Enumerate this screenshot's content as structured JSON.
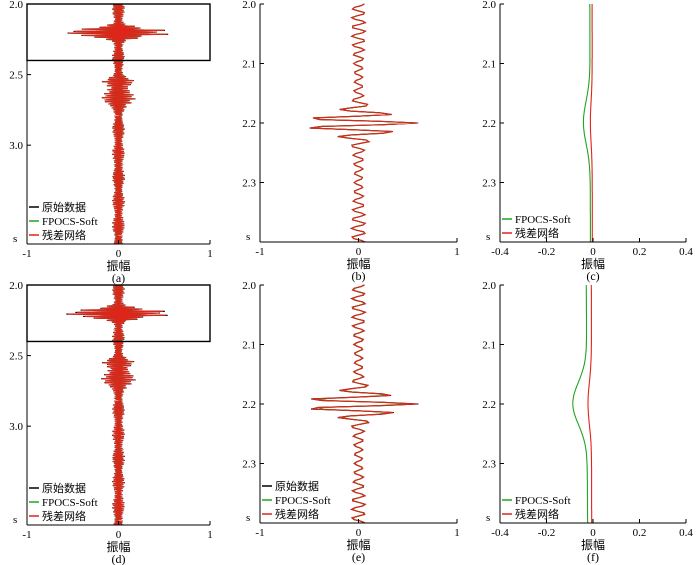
{
  "colors": {
    "original": "#000000",
    "fpocs": "#1fa51f",
    "residual": "#e2231a"
  },
  "legend_labels": {
    "original": "原始数据",
    "fpocs": "FPOCS-Soft",
    "residual": "残差网络"
  },
  "x_axis_label": "振幅",
  "y_unit_label": "s",
  "chart_data": [
    {
      "type": "line",
      "caption": "(a)",
      "orientation": "vertical-trace",
      "xlim": [
        -1,
        1
      ],
      "xticks": [
        "-1",
        "0",
        "1"
      ],
      "ylim": [
        2.0,
        3.7
      ],
      "yticks": [
        {
          "v": 2.0,
          "t": "2.0"
        },
        {
          "v": 2.5,
          "t": "2.5"
        },
        {
          "v": 3.0,
          "t": "3.0"
        }
      ],
      "zoom_box": {
        "x": [
          -1,
          1
        ],
        "y": [
          2.0,
          2.4
        ]
      },
      "legend": [
        "原始数据",
        "FPOCS-Soft",
        "残差网络"
      ],
      "trace_seed": 11,
      "series": [
        {
          "name": "原始数据",
          "color": "#000000",
          "scale": 1.0
        },
        {
          "name": "FPOCS-Soft",
          "color": "#1fa51f",
          "scale": 0.95
        },
        {
          "name": "残差网络",
          "color": "#e2231a",
          "scale": 0.98
        }
      ]
    },
    {
      "type": "line",
      "caption": "(b)",
      "orientation": "vertical-trace",
      "xlim": [
        -1,
        1
      ],
      "xticks": [
        "-1",
        "0",
        "1"
      ],
      "ylim": [
        2.0,
        2.4
      ],
      "yticks": [
        {
          "v": 2.0,
          "t": "2.0"
        },
        {
          "v": 2.1,
          "t": "2.1"
        },
        {
          "v": 2.2,
          "t": "2.2"
        },
        {
          "v": 2.3,
          "t": "2.3"
        }
      ],
      "trace_seed": 21,
      "series": [
        {
          "name": "原始数据",
          "color": "#000000",
          "scale": 1.0
        },
        {
          "name": "FPOCS-Soft",
          "color": "#1fa51f",
          "scale": 0.96
        },
        {
          "name": "残差网络",
          "color": "#e2231a",
          "scale": 1.0
        }
      ]
    },
    {
      "type": "line",
      "caption": "(c)",
      "orientation": "vertical-trace",
      "residual_panel": true,
      "xlim": [
        -0.4,
        0.4
      ],
      "xticks": [
        "-0.4",
        "-0.2",
        "0",
        "0.2",
        "0.4"
      ],
      "ylim": [
        2.0,
        2.4
      ],
      "yticks": [
        {
          "v": 2.0,
          "t": "2.0"
        },
        {
          "v": 2.1,
          "t": "2.1"
        },
        {
          "v": 2.2,
          "t": "2.2"
        },
        {
          "v": 2.3,
          "t": "2.3"
        }
      ],
      "legend": [
        "FPOCS-Soft",
        "残差网络"
      ],
      "trace_seed": 31,
      "series": [
        {
          "name": "FPOCS-Soft",
          "color": "#1fa51f",
          "scale": 0.09
        },
        {
          "name": "残差网络",
          "color": "#e2231a",
          "scale": 0.025
        }
      ]
    },
    {
      "type": "line",
      "caption": "(d)",
      "orientation": "vertical-trace",
      "xlim": [
        -1,
        1
      ],
      "xticks": [
        "-1",
        "0",
        "1"
      ],
      "ylim": [
        2.0,
        3.7
      ],
      "yticks": [
        {
          "v": 2.0,
          "t": "2.0"
        },
        {
          "v": 2.5,
          "t": "2.5"
        },
        {
          "v": 3.0,
          "t": "3.0"
        }
      ],
      "zoom_box": {
        "x": [
          -1,
          1
        ],
        "y": [
          2.0,
          2.4
        ]
      },
      "legend": [
        "原始数据",
        "FPOCS-Soft",
        "残差网络"
      ],
      "trace_seed": 41,
      "series": [
        {
          "name": "原始数据",
          "color": "#000000",
          "scale": 1.0
        },
        {
          "name": "FPOCS-Soft",
          "color": "#1fa51f",
          "scale": 0.8
        },
        {
          "name": "残差网络",
          "color": "#e2231a",
          "scale": 0.96
        }
      ]
    },
    {
      "type": "line",
      "caption": "(e)",
      "orientation": "vertical-trace",
      "xlim": [
        -1,
        1
      ],
      "xticks": [
        "-1",
        "0",
        "1"
      ],
      "ylim": [
        2.0,
        2.4
      ],
      "yticks": [
        {
          "v": 2.0,
          "t": "2.0"
        },
        {
          "v": 2.1,
          "t": "2.1"
        },
        {
          "v": 2.2,
          "t": "2.2"
        },
        {
          "v": 2.3,
          "t": "2.3"
        }
      ],
      "legend": [
        "原始数据",
        "FPOCS-Soft",
        "残差网络"
      ],
      "trace_seed": 51,
      "series": [
        {
          "name": "原始数据",
          "color": "#000000",
          "scale": 1.0
        },
        {
          "name": "FPOCS-Soft",
          "color": "#1fa51f",
          "scale": 0.85
        },
        {
          "name": "残差网络",
          "color": "#e2231a",
          "scale": 0.98
        }
      ]
    },
    {
      "type": "line",
      "caption": "(f)",
      "orientation": "vertical-trace",
      "residual_panel": true,
      "xlim": [
        -0.4,
        0.4
      ],
      "xticks": [
        "-0.4",
        "-0.2",
        "0",
        "0.2",
        "0.4"
      ],
      "ylim": [
        2.0,
        2.4
      ],
      "yticks": [
        {
          "v": 2.0,
          "t": "2.0"
        },
        {
          "v": 2.1,
          "t": "2.1"
        },
        {
          "v": 2.2,
          "t": "2.2"
        },
        {
          "v": 2.3,
          "t": "2.3"
        }
      ],
      "legend": [
        "FPOCS-Soft",
        "残差网络"
      ],
      "trace_seed": 61,
      "series": [
        {
          "name": "FPOCS-Soft",
          "color": "#1fa51f",
          "scale": 0.2
        },
        {
          "name": "残差网络",
          "color": "#e2231a",
          "scale": 0.05
        }
      ]
    }
  ]
}
